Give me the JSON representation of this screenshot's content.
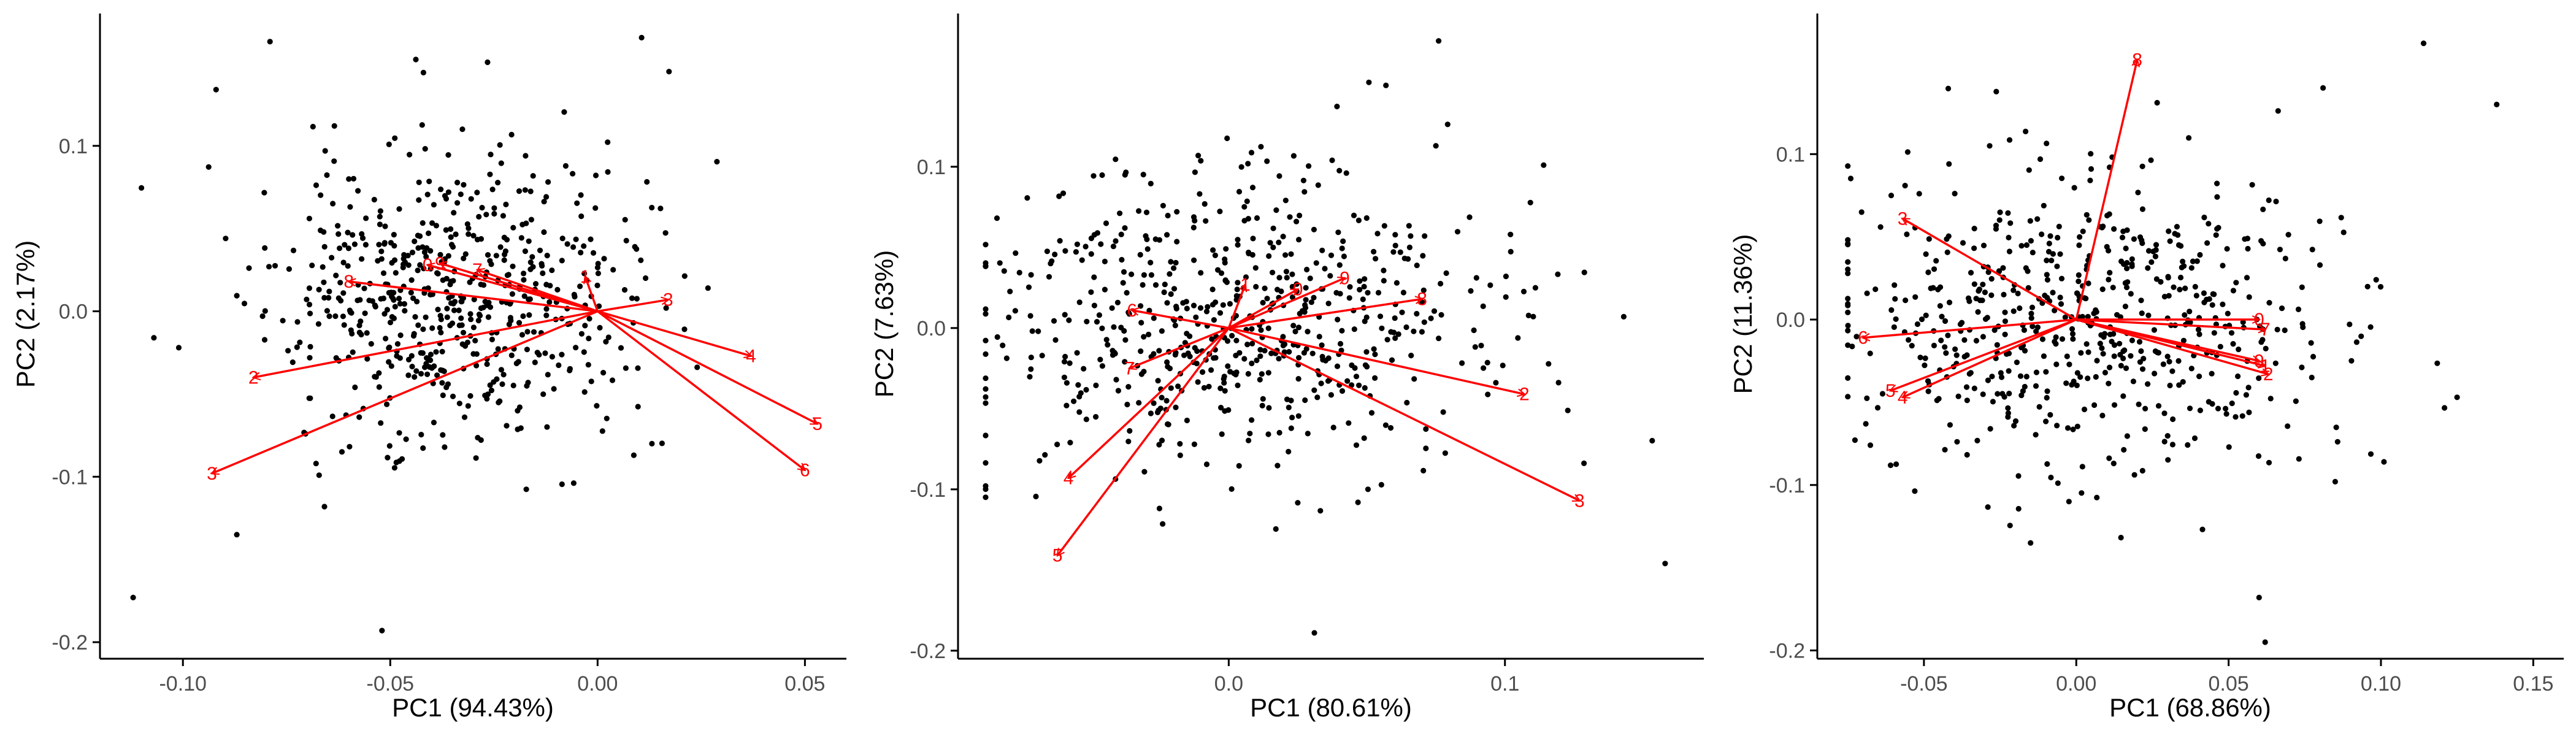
{
  "colors": {
    "point": "#000000",
    "arrow": "#ff0000",
    "axis": "#000000",
    "tick_text": "#4d4d4d"
  },
  "chart_data": [
    {
      "type": "scatter",
      "title": "",
      "xlabel": "PC1 (94.43%)",
      "ylabel": "PC2 (2.17%)",
      "xlim": [
        -0.12,
        0.06
      ],
      "ylim": [
        -0.21,
        0.18
      ],
      "x_ticks": [
        -0.1,
        -0.05,
        0.0,
        0.05
      ],
      "x_tick_labels": [
        "-0.10",
        "-0.05",
        "0.00",
        "0.05"
      ],
      "y_ticks": [
        -0.2,
        -0.1,
        0.0,
        0.1
      ],
      "y_tick_labels": [
        "-0.2",
        "-0.1",
        "0.0",
        "0.1"
      ],
      "grid": false,
      "scores": {
        "count": 600,
        "cx": -0.035,
        "cy": 0.01,
        "sx": 0.022,
        "sy": 0.045,
        "seed": 11
      },
      "outliers": [
        [
          -0.112,
          -0.173
        ],
        [
          -0.092,
          0.134
        ],
        [
          -0.079,
          0.163
        ],
        [
          -0.052,
          -0.193
        ],
        [
          -0.107,
          -0.016
        ],
        [
          -0.101,
          -0.022
        ],
        [
          -0.087,
          -0.135
        ]
      ],
      "loadings": [
        {
          "label": "1",
          "x": -0.003,
          "y": 0.021
        },
        {
          "label": "2",
          "x": -0.083,
          "y": -0.04
        },
        {
          "label": "3",
          "x": -0.093,
          "y": -0.098
        },
        {
          "label": "3",
          "x": 0.017,
          "y": 0.007
        },
        {
          "label": "4",
          "x": 0.037,
          "y": -0.027
        },
        {
          "label": "5",
          "x": 0.053,
          "y": -0.068
        },
        {
          "label": "6",
          "x": 0.05,
          "y": -0.096
        },
        {
          "label": "7",
          "x": -0.029,
          "y": 0.025
        },
        {
          "label": "8",
          "x": -0.06,
          "y": 0.018
        },
        {
          "label": "9",
          "x": -0.038,
          "y": 0.029
        },
        {
          "label": "0",
          "x": -0.041,
          "y": 0.028
        }
      ]
    },
    {
      "type": "scatter",
      "title": "",
      "xlabel": "PC1 (80.61%)",
      "ylabel": "PC2 (7.63%)",
      "xlim": [
        -0.098,
        0.172
      ],
      "ylim": [
        -0.205,
        0.195
      ],
      "x_ticks": [
        0.0,
        0.1
      ],
      "x_tick_labels": [
        "0.0",
        "0.1"
      ],
      "y_ticks": [
        -0.2,
        -0.1,
        0.0,
        0.1
      ],
      "y_tick_labels": [
        "-0.2",
        "-0.1",
        "0.0",
        "0.1"
      ],
      "grid": false,
      "scores": {
        "count": 620,
        "cx": 0.0,
        "cy": 0.003,
        "sx": 0.045,
        "sy": 0.045,
        "seed": 23
      },
      "outliers": [
        [
          0.076,
          0.178
        ],
        [
          0.158,
          -0.146
        ],
        [
          0.143,
          0.007
        ],
        [
          0.031,
          -0.189
        ],
        [
          0.102,
          0.058
        ],
        [
          0.075,
          0.113
        ],
        [
          0.114,
          0.101
        ]
      ],
      "loadings": [
        {
          "label": "1",
          "x": 0.006,
          "y": 0.027
        },
        {
          "label": "2",
          "x": 0.107,
          "y": -0.041
        },
        {
          "label": "3",
          "x": 0.127,
          "y": -0.107
        },
        {
          "label": "4",
          "x": -0.058,
          "y": -0.093
        },
        {
          "label": "5",
          "x": -0.062,
          "y": -0.141
        },
        {
          "label": "6",
          "x": -0.035,
          "y": 0.011
        },
        {
          "label": "7",
          "x": -0.036,
          "y": -0.025
        },
        {
          "label": "8",
          "x": 0.07,
          "y": 0.018
        },
        {
          "label": "9",
          "x": 0.042,
          "y": 0.031
        },
        {
          "label": "0",
          "x": 0.025,
          "y": 0.024
        }
      ]
    },
    {
      "type": "scatter",
      "title": "",
      "xlabel": "PC1 (68.86%)",
      "ylabel": "PC2 (11.36%)",
      "xlim": [
        -0.085,
        0.16
      ],
      "ylim": [
        -0.205,
        0.185
      ],
      "x_ticks": [
        -0.05,
        0.0,
        0.05,
        0.1,
        0.15
      ],
      "x_tick_labels": [
        "-0.05",
        "0.00",
        "0.05",
        "0.10",
        "0.15"
      ],
      "y_ticks": [
        -0.2,
        -0.1,
        0.0,
        0.1
      ],
      "y_tick_labels": [
        "-0.2",
        "-0.1",
        "0.0",
        "0.1"
      ],
      "grid": false,
      "scores": {
        "count": 600,
        "cx": 0.005,
        "cy": 0.0,
        "sx": 0.04,
        "sy": 0.045,
        "seed": 37
      },
      "outliers": [
        [
          0.114,
          0.167
        ],
        [
          0.138,
          0.13
        ],
        [
          0.125,
          -0.047
        ],
        [
          0.101,
          -0.086
        ],
        [
          0.062,
          -0.195
        ],
        [
          0.06,
          -0.168
        ],
        [
          0.081,
          0.14
        ],
        [
          -0.015,
          -0.135
        ],
        [
          0.085,
          -0.098
        ]
      ],
      "loadings": [
        {
          "label": "1",
          "x": 0.062,
          "y": -0.028
        },
        {
          "label": "2",
          "x": 0.063,
          "y": -0.033
        },
        {
          "label": "3",
          "x": -0.057,
          "y": 0.061
        },
        {
          "label": "4",
          "x": -0.057,
          "y": -0.047
        },
        {
          "label": "5",
          "x": -0.061,
          "y": -0.043
        },
        {
          "label": "6",
          "x": -0.07,
          "y": -0.011
        },
        {
          "label": "7",
          "x": 0.062,
          "y": -0.006
        },
        {
          "label": "8",
          "x": 0.02,
          "y": 0.157
        },
        {
          "label": "9",
          "x": 0.06,
          "y": -0.025
        },
        {
          "label": "0",
          "x": 0.06,
          "y": 0.0
        }
      ]
    }
  ]
}
